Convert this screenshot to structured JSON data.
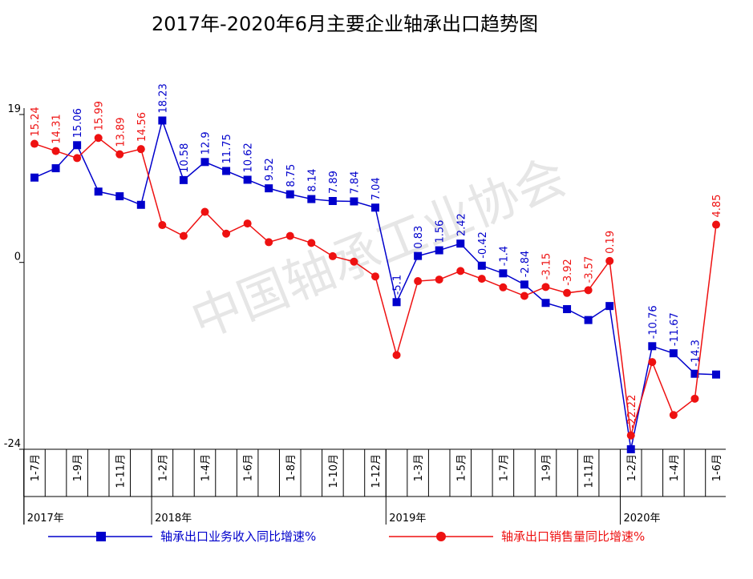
{
  "chart_data": {
    "type": "line",
    "title": "2017年-2020年6月主要企业轴承出口趋势图",
    "watermark": "中国轴承工业协会",
    "categories": [
      "1-7月",
      null,
      "1-9月",
      null,
      "1-11月",
      null,
      "1-2月",
      null,
      "1-4月",
      null,
      "1-6月",
      null,
      "1-8月",
      null,
      "1-10月",
      null,
      "1-12月",
      null,
      "1-3月",
      null,
      "1-5月",
      null,
      "1-7月",
      null,
      "1-9月",
      null,
      "1-11月",
      null,
      "1-2月",
      null,
      "1-4月",
      null,
      "1-6月"
    ],
    "x_groups": [
      {
        "label": "2017年",
        "size": 6
      },
      {
        "label": "2018年",
        "size": 11
      },
      {
        "label": "2019年",
        "size": 11
      },
      {
        "label": "2020年",
        "size": 5
      }
    ],
    "series": [
      {
        "name": "轴承出口业务收入同比增速%",
        "color": "#0000cc",
        "marker": "square",
        "values": [
          10.9,
          12.1,
          15.06,
          9.1,
          8.5,
          7.4,
          18.23,
          10.58,
          12.9,
          11.75,
          10.62,
          9.52,
          8.75,
          8.14,
          7.89,
          7.84,
          7.04,
          -5.1,
          0.83,
          1.56,
          2.42,
          -0.42,
          -1.4,
          -2.84,
          -5.2,
          -6.0,
          -7.4,
          -5.6,
          -24,
          -10.76,
          -11.67,
          -14.3,
          -14.4
        ],
        "value_labels": [
          null,
          null,
          "15.06",
          null,
          null,
          null,
          "18.23",
          "10.58",
          "12.9",
          "11.75",
          "10.62",
          "9.52",
          "8.75",
          "8.14",
          "7.89",
          "7.84",
          "7.04",
          "-5.1",
          "0.83",
          "1.56",
          "2.42",
          "-0.42",
          "-1.4",
          "-2.84",
          null,
          null,
          null,
          null,
          null,
          "-10.76",
          "-11.67",
          "-14.3",
          null
        ]
      },
      {
        "name": "轴承出口销售量同比增速%",
        "color": "#ee1111",
        "marker": "circle",
        "values": [
          15.24,
          14.31,
          13.4,
          15.99,
          13.89,
          14.56,
          4.8,
          3.4,
          6.5,
          3.7,
          5.0,
          2.6,
          3.4,
          2.5,
          0.8,
          0.1,
          -1.8,
          -11.9,
          -2.4,
          -2.2,
          -1.1,
          -2.1,
          -3.2,
          -4.3,
          -3.15,
          -3.92,
          -3.57,
          0.19,
          -22.22,
          -12.8,
          -19.6,
          -17.5,
          4.85
        ],
        "value_labels": [
          "15.24",
          "14.31",
          null,
          "15.99",
          "13.89",
          "14.56",
          null,
          null,
          null,
          null,
          null,
          null,
          null,
          null,
          null,
          null,
          null,
          null,
          null,
          null,
          null,
          null,
          null,
          null,
          "-3.15",
          "-3.92",
          "-3.57",
          "0.19",
          "-22.22",
          null,
          null,
          null,
          "4.85"
        ]
      }
    ],
    "ylim": [
      -24,
      19
    ],
    "yticks": [
      19,
      0,
      -24
    ],
    "grid": false
  }
}
